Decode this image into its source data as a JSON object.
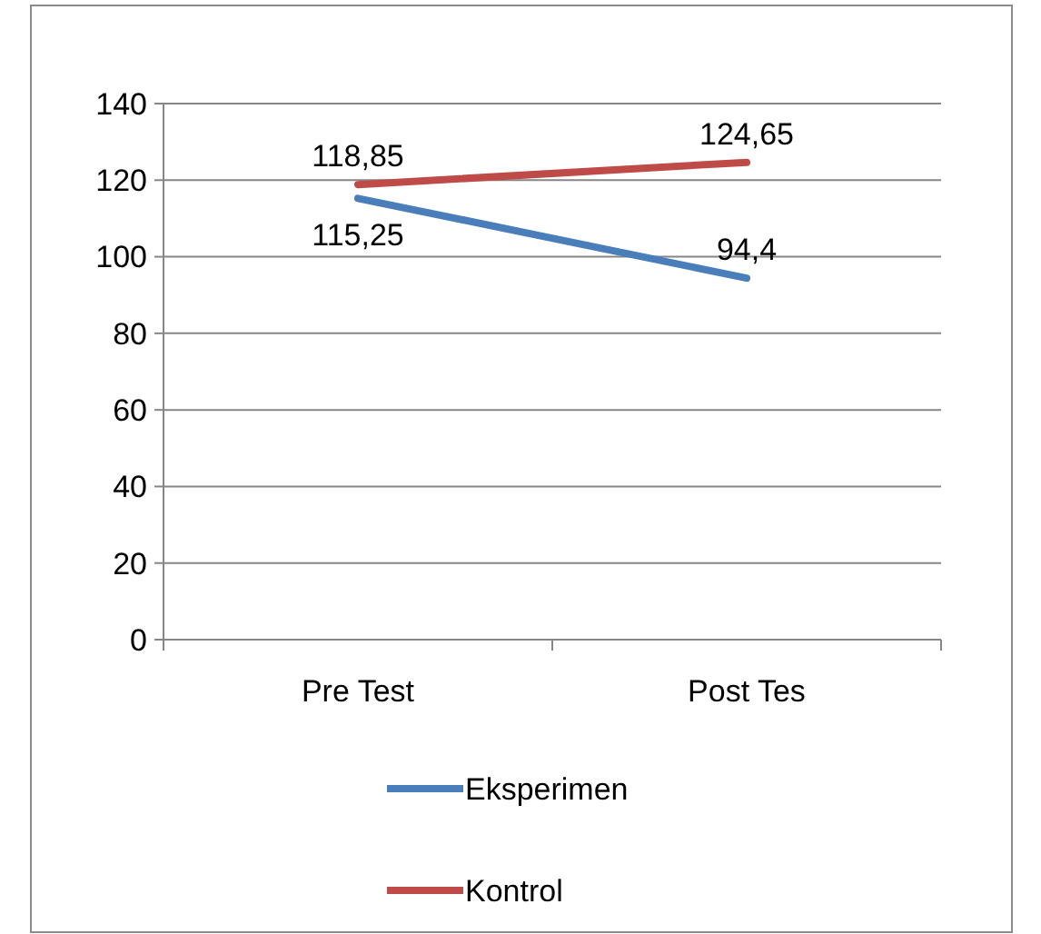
{
  "chart_data": {
    "type": "line",
    "categories": [
      "Pre Test",
      "Post Tes"
    ],
    "series": [
      {
        "name": "Eksperimen",
        "color": "#4a7ebb",
        "values": [
          115.25,
          94.4
        ],
        "value_labels": [
          "115,25",
          "94,4"
        ]
      },
      {
        "name": "Kontrol",
        "color": "#be4b48",
        "values": [
          118.85,
          124.65
        ],
        "value_labels": [
          "118,85",
          "124,65"
        ]
      }
    ],
    "ylim": [
      0,
      140
    ],
    "yticks": [
      0,
      20,
      40,
      60,
      80,
      100,
      120,
      140
    ],
    "grid": "y",
    "legend": "bottom",
    "marker": "none",
    "line_style": "solid"
  }
}
